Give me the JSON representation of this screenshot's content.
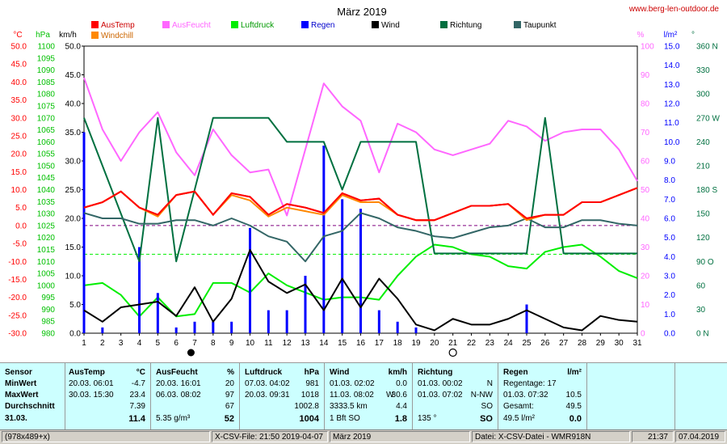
{
  "chart_data": {
    "type": "line",
    "title": "März 2019",
    "source": "www.berg-len-outdoor.de",
    "x": [
      1,
      2,
      3,
      4,
      5,
      6,
      7,
      8,
      9,
      10,
      11,
      12,
      13,
      14,
      15,
      16,
      17,
      18,
      19,
      20,
      21,
      22,
      23,
      24,
      25,
      26,
      27,
      28,
      29,
      30,
      31
    ],
    "moon_markers": [
      {
        "day": 6.8,
        "phase": "new"
      },
      {
        "day": 21,
        "phase": "full"
      }
    ],
    "axes": {
      "temp": {
        "unit": "°C",
        "color": "#ff0000",
        "min": -30,
        "max": 50,
        "ticks": [
          "50.0",
          "45.0",
          "40.0",
          "35.0",
          "30.0",
          "25.0",
          "20.0",
          "15.0",
          "10.0",
          "5.0",
          "0.0",
          "-5.0",
          "-10.0",
          "-15.0",
          "-20.0",
          "-25.0",
          "-30.0"
        ]
      },
      "pressure": {
        "unit": "hPa",
        "color": "#00c000",
        "min": 980,
        "max": 1100,
        "ticks": [
          "1100",
          "1095",
          "1090",
          "1085",
          "1080",
          "1075",
          "1070",
          "1065",
          "1060",
          "1055",
          "1050",
          "1045",
          "1040",
          "1035",
          "1030",
          "1025",
          "1020",
          "1015",
          "1010",
          "1005",
          "1000",
          "995",
          "990",
          "985",
          "980"
        ]
      },
      "wind": {
        "unit": "km/h",
        "color": "#000000",
        "min": 0,
        "max": 50,
        "ticks": [
          "50.0",
          "45.0",
          "40.0",
          "35.0",
          "30.0",
          "25.0",
          "20.0",
          "15.0",
          "10.0",
          "5.0",
          "0.0"
        ]
      },
      "humidity": {
        "unit": "%",
        "color": "#ff66ff",
        "min": 0,
        "max": 100,
        "ticks": [
          "100",
          "90",
          "80",
          "70",
          "60",
          "50",
          "40",
          "30",
          "20",
          "10",
          "0"
        ]
      },
      "rain": {
        "unit": "l/m²",
        "color": "#0000ff",
        "min": 0,
        "max": 15,
        "ticks": [
          "15.0",
          "14.0",
          "13.0",
          "12.0",
          "11.0",
          "10.0",
          "9.0",
          "8.0",
          "7.0",
          "6.0",
          "5.0",
          "4.0",
          "3.0",
          "2.0",
          "1.0",
          "0.0"
        ]
      },
      "direction": {
        "unit": "°",
        "color": "#007040",
        "min": 0,
        "max": 360,
        "ticks": [
          "360 N",
          "330",
          "300",
          "270 W",
          "240",
          "210",
          "180 S",
          "150",
          "120",
          "90 O",
          "60",
          "30",
          "0 N"
        ]
      }
    },
    "series": [
      {
        "name": "AusTemp",
        "color": "#ff0000",
        "axis": "temp",
        "values": [
          5,
          6.5,
          9.5,
          5,
          3,
          8.5,
          9.5,
          3,
          9,
          8,
          3,
          6,
          5,
          3.5,
          9,
          7,
          7.5,
          3,
          1.5,
          1.5,
          3.5,
          5.5,
          5.5,
          6,
          2,
          3,
          3,
          6.5,
          6.5,
          8.5,
          10.5
        ]
      },
      {
        "name": "AusFeucht",
        "color": "#ff66ff",
        "axis": "humidity",
        "values": [
          89,
          71,
          60,
          70,
          77,
          63,
          55,
          71,
          62,
          56,
          57,
          41,
          64,
          87,
          79,
          74,
          56,
          73,
          70,
          64,
          62,
          64,
          66,
          74,
          72,
          67,
          70,
          71,
          71,
          64,
          53
        ]
      },
      {
        "name": "Luftdruck",
        "color": "#00ee00",
        "axis": "pressure",
        "values": [
          1000,
          1001,
          996,
          987,
          995,
          987,
          988,
          1001,
          1001,
          997,
          1005,
          1000,
          997,
          994,
          995,
          995,
          994,
          1004,
          1012,
          1017,
          1016,
          1013,
          1012,
          1008,
          1007,
          1014,
          1016,
          1017,
          1012,
          1006,
          1003
        ]
      },
      {
        "name": "Regen",
        "color": "#0000ff",
        "axis": "rain",
        "type": "bar",
        "values": [
          10.5,
          0.3,
          0,
          4.5,
          2.1,
          0.3,
          0.6,
          0.6,
          0.6,
          5.5,
          1.2,
          1.2,
          3,
          9.8,
          7,
          6.5,
          1.2,
          0.6,
          0.3,
          0,
          0,
          0,
          0,
          0,
          1.5,
          0,
          0,
          0,
          0,
          0,
          0
        ]
      },
      {
        "name": "Wind",
        "color": "#000000",
        "axis": "wind",
        "values": [
          4,
          2,
          4.5,
          5,
          5.5,
          3,
          8,
          2,
          6,
          14.5,
          9,
          7,
          8.5,
          4,
          9.5,
          4.5,
          9.5,
          6,
          1.5,
          0.5,
          2.5,
          1.5,
          1.5,
          2.5,
          4,
          2.5,
          1,
          0.5,
          3,
          2.3,
          2
        ]
      },
      {
        "name": "Richtung",
        "color": "#007040",
        "axis": "direction",
        "values": [
          270,
          210,
          150,
          90,
          270,
          90,
          180,
          270,
          270,
          270,
          270,
          240,
          240,
          240,
          180,
          240,
          240,
          240,
          240,
          100,
          100,
          100,
          100,
          100,
          100,
          270,
          100,
          100,
          100,
          100,
          100
        ]
      },
      {
        "name": "Taupunkt",
        "color": "#336666",
        "axis": "temp",
        "values": [
          3.5,
          2,
          2,
          0.5,
          0.5,
          1.5,
          1.5,
          0,
          2,
          0,
          -3,
          -4.5,
          -10,
          -3,
          -1.5,
          3.5,
          2,
          -0.5,
          -1.5,
          -3,
          -3.5,
          -2,
          -0.5,
          0,
          2,
          -0.5,
          -0.5,
          1.5,
          1.5,
          0.5,
          0
        ]
      },
      {
        "name": "Windchill",
        "color": "#ff8800",
        "axis": "temp",
        "values": [
          5,
          6.5,
          9.5,
          5,
          2.5,
          8.5,
          9.5,
          3,
          8.5,
          7,
          2.5,
          5,
          4,
          3,
          8.5,
          6.5,
          6.5,
          3,
          1.5,
          1.5,
          3.5,
          5.5,
          5.5,
          6,
          1.5,
          3,
          3,
          6.5,
          6.5,
          8.5,
          10.5
        ]
      }
    ],
    "reference_lines": [
      {
        "axis": "temp",
        "value": 0,
        "color": "#800080",
        "style": "dashed"
      },
      {
        "axis": "pressure",
        "value": 1013,
        "color": "#00ee00",
        "style": "dashed"
      }
    ]
  },
  "table": {
    "headers": [
      "Sensor",
      "AusTemp",
      "°C",
      "AusFeucht",
      "%",
      "Luftdruck",
      "hPa",
      "Wind",
      "km/h",
      "Richtung",
      "Regen",
      "l/m²"
    ],
    "row_labels": [
      "MinWert",
      "MaxWert",
      "Durchschnitt",
      "31.03."
    ],
    "austemp": [
      [
        "20.03.  06:01",
        "-4.7"
      ],
      [
        "30.03.  15:30",
        "23.4"
      ],
      [
        "",
        "7.39"
      ],
      [
        "",
        "11.4"
      ]
    ],
    "ausfeucht": [
      [
        "20.03.  16:01",
        "20"
      ],
      [
        "06.03.  08:02",
        "97"
      ],
      [
        "",
        "67"
      ],
      [
        "5.35 g/m³",
        "52"
      ]
    ],
    "luftdruck": [
      [
        "07.03.  04:02",
        "981"
      ],
      [
        "20.03.  09:31",
        "1018"
      ],
      [
        "",
        "1002.8"
      ],
      [
        "",
        "1004"
      ]
    ],
    "wind": [
      [
        "01.03.  02:02",
        "",
        "0.0"
      ],
      [
        "11.03.  08:02",
        "W",
        "30.6"
      ],
      [
        "3333.5 km",
        "",
        "4.4"
      ],
      [
        "1 Bft SO",
        "",
        "1.8"
      ]
    ],
    "richtung": [
      [
        "01.03.  00:02",
        "N"
      ],
      [
        "01.03.  07:02",
        "N-NW"
      ],
      [
        "",
        "SO"
      ],
      [
        "135 °",
        "SO"
      ]
    ],
    "regen": [
      [
        "Regentage: 17",
        ""
      ],
      [
        "01.03.  07:32",
        "10.5"
      ],
      [
        "Gesamt:",
        "49.5"
      ],
      [
        "49.5 l/m²",
        "0.0"
      ]
    ]
  },
  "statusbar": {
    "size": "(978x489+x)",
    "file": "X-CSV-File:  21:50  2019-04-07",
    "month": "März 2019",
    "datei": "Datei: X-CSV-Datei - WMR918N",
    "time": "21:37",
    "date": "07.04.2019"
  }
}
